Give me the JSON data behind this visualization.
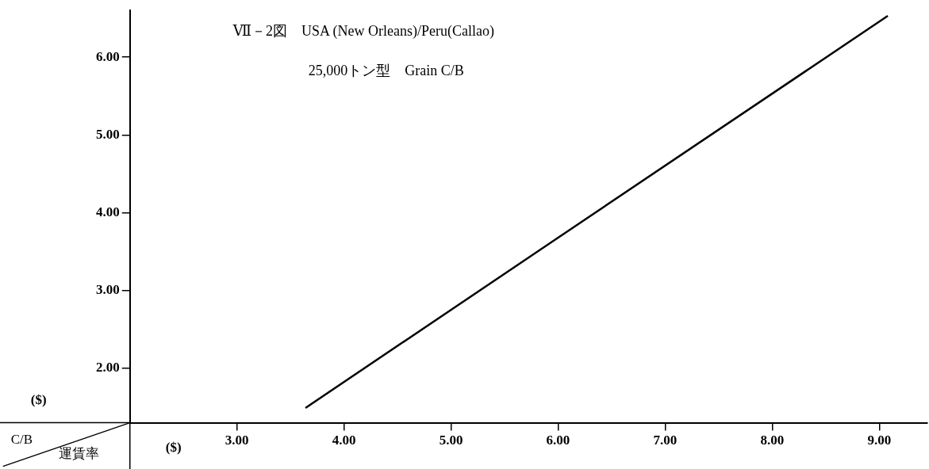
{
  "chart_data": {
    "type": "line",
    "title": "Ⅶ－2図　USA (New Orleans)/Peru(Callao)",
    "subtitle": "25,000トン型　Grain C/B",
    "xlabel": "運賃率",
    "ylabel": "C/B",
    "annotations": [
      "($)",
      "($)"
    ],
    "x": [
      3.64,
      6,
      9.08
    ],
    "series": [
      {
        "color": "#000000",
        "values": [
          1.49,
          3.68,
          6.53
        ]
      }
    ],
    "xlim": [
      2,
      9.45
    ],
    "ylim": [
      1.3,
      6.6
    ],
    "xticks": [
      {
        "value": 3,
        "label": "3.00"
      },
      {
        "value": 4,
        "label": "4.00"
      },
      {
        "value": 5,
        "label": "5.00"
      },
      {
        "value": 6,
        "label": "6.00"
      },
      {
        "value": 7,
        "label": "7.00"
      },
      {
        "value": 8,
        "label": "8.00"
      },
      {
        "value": 9,
        "label": "9.00"
      }
    ],
    "yticks": [
      {
        "value": 2,
        "label": "2.00"
      },
      {
        "value": 3,
        "label": "3.00"
      },
      {
        "value": 4,
        "label": "4.00"
      },
      {
        "value": 5,
        "label": "5.00"
      },
      {
        "value": 6,
        "label": "6.00"
      }
    ],
    "grid": false,
    "legend": false,
    "marker": "none",
    "line_style": "solid"
  }
}
